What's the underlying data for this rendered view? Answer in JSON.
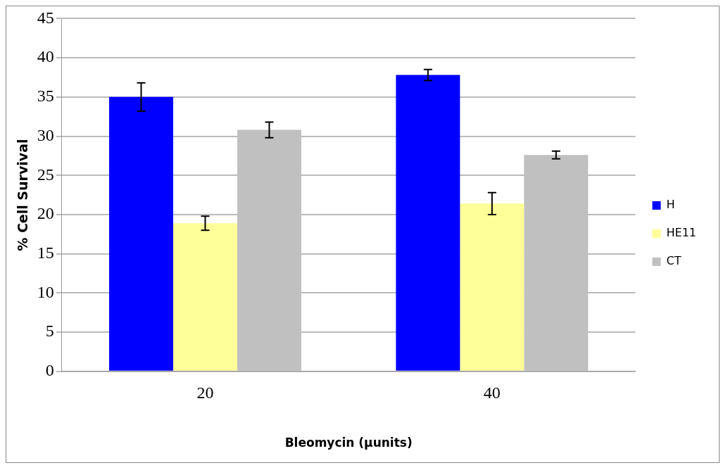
{
  "chart_data": {
    "type": "bar",
    "xlabel": "Bleomycin (µunits)",
    "ylabel": "% Cell Survival",
    "categories": [
      "20",
      "40"
    ],
    "series": [
      {
        "name": "H",
        "color": "#0000ff",
        "values": [
          35.0,
          37.8
        ],
        "errors": [
          1.8,
          0.7
        ]
      },
      {
        "name": "HE11",
        "color": "#ffff99",
        "values": [
          18.9,
          21.4
        ],
        "errors": [
          0.9,
          1.4
        ]
      },
      {
        "name": "CT",
        "color": "#c0c0c0",
        "values": [
          30.8,
          27.6
        ],
        "errors": [
          1.0,
          0.5
        ]
      }
    ],
    "ylim": [
      0,
      45
    ],
    "yticks": [
      0,
      5,
      10,
      15,
      20,
      25,
      30,
      35,
      40,
      45
    ],
    "grid": "y",
    "legend": "right"
  }
}
